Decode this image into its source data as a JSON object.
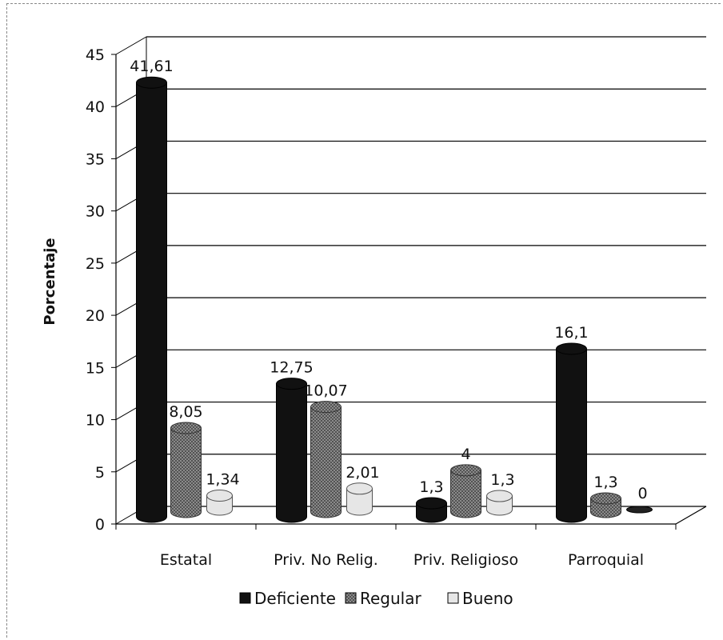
{
  "chart_data": {
    "type": "bar",
    "title": "",
    "xlabel": "",
    "ylabel": "Porcentaje",
    "ylim": [
      0,
      45
    ],
    "yticks": [
      0,
      5,
      10,
      15,
      20,
      25,
      30,
      35,
      40,
      45
    ],
    "grid": true,
    "legend_position": "bottom",
    "categories": [
      "Estatal",
      "Priv. No Relig.",
      "Priv. Religioso",
      "Parroquial"
    ],
    "series": [
      {
        "name": "Deficiente",
        "values": [
          41.61,
          12.75,
          1.3,
          16.1
        ],
        "labels": [
          "41,61",
          "12,75",
          "1,3",
          "16,1"
        ],
        "color": "#111111"
      },
      {
        "name": "Regular",
        "values": [
          8.05,
          10.07,
          4,
          1.3
        ],
        "labels": [
          "8,05",
          "10,07",
          "4",
          "1,3"
        ],
        "color": "#8c8c8c"
      },
      {
        "name": "Bueno",
        "values": [
          1.34,
          2.01,
          1.3,
          0
        ],
        "labels": [
          "1,34",
          "2,01",
          "1,3",
          "0"
        ],
        "color": "#e6e6e6"
      }
    ]
  }
}
